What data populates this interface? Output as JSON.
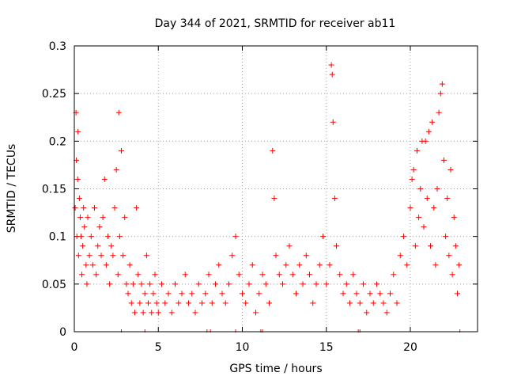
{
  "chart_data": {
    "type": "scatter",
    "title": "Day 344 of 2021, SRMTID for receiver ab11",
    "xlabel": "GPS time / hours",
    "ylabel": "SRMTID / TECUs",
    "xlim": [
      0,
      24
    ],
    "ylim": [
      0,
      0.3
    ],
    "x_ticks": [
      0,
      5,
      10,
      15,
      20
    ],
    "y_ticks": [
      0,
      0.05,
      0.1,
      0.15,
      0.2,
      0.25,
      0.3
    ],
    "x_tick_labels": [
      "0",
      "5",
      "10",
      "15",
      "20"
    ],
    "y_tick_labels": [
      "0",
      "0.05",
      "0.1",
      "0.15",
      "0.2",
      "0.25",
      "0.3"
    ],
    "grid": true,
    "marker": "+",
    "color": "#ff0000",
    "series": [
      {
        "name": "SRMTID",
        "points": [
          [
            0.05,
            0.13
          ],
          [
            0.1,
            0.23
          ],
          [
            0.12,
            0.18
          ],
          [
            0.15,
            0.1
          ],
          [
            0.2,
            0.16
          ],
          [
            0.22,
            0.21
          ],
          [
            0.25,
            0.08
          ],
          [
            0.3,
            0.14
          ],
          [
            0.35,
            0.12
          ],
          [
            0.4,
            0.1
          ],
          [
            0.45,
            0.06
          ],
          [
            0.5,
            0.09
          ],
          [
            0.55,
            0.13
          ],
          [
            0.6,
            0.11
          ],
          [
            0.7,
            0.07
          ],
          [
            0.75,
            0.05
          ],
          [
            0.8,
            0.12
          ],
          [
            0.9,
            0.08
          ],
          [
            1.0,
            0.1
          ],
          [
            1.1,
            0.07
          ],
          [
            1.2,
            0.13
          ],
          [
            1.3,
            0.06
          ],
          [
            1.4,
            0.09
          ],
          [
            1.5,
            0.11
          ],
          [
            1.6,
            0.08
          ],
          [
            1.7,
            0.12
          ],
          [
            1.8,
            0.16
          ],
          [
            1.9,
            0.07
          ],
          [
            2.0,
            0.1
          ],
          [
            2.1,
            0.05
          ],
          [
            2.2,
            0.09
          ],
          [
            2.3,
            0.08
          ],
          [
            2.4,
            0.13
          ],
          [
            2.5,
            0.17
          ],
          [
            2.6,
            0.06
          ],
          [
            2.65,
            0.23
          ],
          [
            2.7,
            0.1
          ],
          [
            2.8,
            0.19
          ],
          [
            2.9,
            0.08
          ],
          [
            3.0,
            0.12
          ],
          [
            3.1,
            0.05
          ],
          [
            3.2,
            0.04
          ],
          [
            3.3,
            0.07
          ],
          [
            3.4,
            0.03
          ],
          [
            3.5,
            0.05
          ],
          [
            3.6,
            0.02
          ],
          [
            3.7,
            0.13
          ],
          [
            3.8,
            0.06
          ],
          [
            3.9,
            0.03
          ],
          [
            4.0,
            0.05
          ],
          [
            4.1,
            0.02
          ],
          [
            4.2,
            0.04
          ],
          [
            4.3,
            0.08
          ],
          [
            4.4,
            0.03
          ],
          [
            4.5,
            0.05
          ],
          [
            4.6,
            0.02
          ],
          [
            4.7,
            0.04
          ],
          [
            4.8,
            0.06
          ],
          [
            4.9,
            0.03
          ],
          [
            5.0,
            0.02
          ],
          [
            5.2,
            0.05
          ],
          [
            5.4,
            0.03
          ],
          [
            5.6,
            0.04
          ],
          [
            5.8,
            0.02
          ],
          [
            6.0,
            0.05
          ],
          [
            6.2,
            0.03
          ],
          [
            6.4,
            0.04
          ],
          [
            6.6,
            0.06
          ],
          [
            6.8,
            0.03
          ],
          [
            7.0,
            0.04
          ],
          [
            7.2,
            0.02
          ],
          [
            7.4,
            0.05
          ],
          [
            7.6,
            0.03
          ],
          [
            7.8,
            0.04
          ],
          [
            8.0,
            0.06
          ],
          [
            8.2,
            0.03
          ],
          [
            8.4,
            0.05
          ],
          [
            8.6,
            0.07
          ],
          [
            8.8,
            0.04
          ],
          [
            9.0,
            0.03
          ],
          [
            9.2,
            0.05
          ],
          [
            9.4,
            0.08
          ],
          [
            9.6,
            0.1
          ],
          [
            9.8,
            0.06
          ],
          [
            10.0,
            0.04
          ],
          [
            10.2,
            0.03
          ],
          [
            10.4,
            0.05
          ],
          [
            10.6,
            0.07
          ],
          [
            10.8,
            0.02
          ],
          [
            11.0,
            0.04
          ],
          [
            11.2,
            0.06
          ],
          [
            11.4,
            0.05
          ],
          [
            11.6,
            0.03
          ],
          [
            11.8,
            0.19
          ],
          [
            11.9,
            0.14
          ],
          [
            12.0,
            0.08
          ],
          [
            12.2,
            0.06
          ],
          [
            12.4,
            0.05
          ],
          [
            12.6,
            0.07
          ],
          [
            12.8,
            0.09
          ],
          [
            13.0,
            0.06
          ],
          [
            13.2,
            0.04
          ],
          [
            13.4,
            0.07
          ],
          [
            13.6,
            0.05
          ],
          [
            13.8,
            0.08
          ],
          [
            14.0,
            0.06
          ],
          [
            14.2,
            0.03
          ],
          [
            14.4,
            0.05
          ],
          [
            14.6,
            0.07
          ],
          [
            14.8,
            0.1
          ],
          [
            15.0,
            0.05
          ],
          [
            15.2,
            0.07
          ],
          [
            15.3,
            0.28
          ],
          [
            15.35,
            0.27
          ],
          [
            15.4,
            0.22
          ],
          [
            15.5,
            0.14
          ],
          [
            15.6,
            0.09
          ],
          [
            15.8,
            0.06
          ],
          [
            16.0,
            0.04
          ],
          [
            16.2,
            0.05
          ],
          [
            16.4,
            0.03
          ],
          [
            16.6,
            0.06
          ],
          [
            16.8,
            0.04
          ],
          [
            17.0,
            0.03
          ],
          [
            17.2,
            0.05
          ],
          [
            17.4,
            0.02
          ],
          [
            17.6,
            0.04
          ],
          [
            17.8,
            0.03
          ],
          [
            18.0,
            0.05
          ],
          [
            18.2,
            0.04
          ],
          [
            18.4,
            0.03
          ],
          [
            18.6,
            0.02
          ],
          [
            18.8,
            0.04
          ],
          [
            19.0,
            0.06
          ],
          [
            19.2,
            0.03
          ],
          [
            19.4,
            0.08
          ],
          [
            19.6,
            0.1
          ],
          [
            19.8,
            0.07
          ],
          [
            20.0,
            0.13
          ],
          [
            20.1,
            0.16
          ],
          [
            20.2,
            0.17
          ],
          [
            20.3,
            0.09
          ],
          [
            20.4,
            0.19
          ],
          [
            20.5,
            0.12
          ],
          [
            20.6,
            0.15
          ],
          [
            20.7,
            0.2
          ],
          [
            20.8,
            0.11
          ],
          [
            20.9,
            0.2
          ],
          [
            21.0,
            0.14
          ],
          [
            21.1,
            0.21
          ],
          [
            21.2,
            0.09
          ],
          [
            21.3,
            0.22
          ],
          [
            21.4,
            0.13
          ],
          [
            21.5,
            0.07
          ],
          [
            21.6,
            0.15
          ],
          [
            21.7,
            0.23
          ],
          [
            21.8,
            0.25
          ],
          [
            21.9,
            0.26
          ],
          [
            22.0,
            0.18
          ],
          [
            22.1,
            0.1
          ],
          [
            22.2,
            0.14
          ],
          [
            22.3,
            0.08
          ],
          [
            22.4,
            0.17
          ],
          [
            22.5,
            0.06
          ],
          [
            22.6,
            0.12
          ],
          [
            22.7,
            0.09
          ],
          [
            22.8,
            0.04
          ],
          [
            22.9,
            0.07
          ]
        ]
      }
    ],
    "zero_markers_x": [
      2.8,
      4.2,
      7.9,
      8.1,
      9.6,
      11.1,
      11.2,
      16.9,
      17.0,
      22.95
    ]
  }
}
